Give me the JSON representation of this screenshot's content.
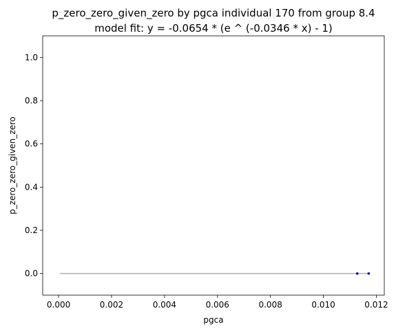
{
  "chart_data": {
    "type": "scatter",
    "title": "p_zero_zero_given_zero by pgca individual 170 from group 8.4",
    "subtitle": "model fit: y = -0.0654 * (e ^ (-0.0346 * x) - 1)",
    "xlabel": "pgca",
    "ylabel": "p_zero_zero_given_zero",
    "xlim": [
      -0.0006,
      0.0123
    ],
    "ylim": [
      -0.1,
      1.1
    ],
    "x_ticks": [
      "0.000",
      "0.002",
      "0.004",
      "0.006",
      "0.008",
      "0.010",
      "0.012"
    ],
    "y_ticks": [
      "0.0",
      "0.2",
      "0.4",
      "0.6",
      "0.8",
      "1.0"
    ],
    "grid": false,
    "points": [
      {
        "x": 0.01128,
        "y": 0.0
      },
      {
        "x": 0.01171,
        "y": 0.0
      }
    ],
    "fit_line": {
      "a": -0.0654,
      "b": -0.0346,
      "x_range": [
        5e-05,
        0.01171
      ]
    },
    "colors": {
      "points": "#0000cc",
      "fit_line": "#b0b0b0",
      "axes": "#000000"
    }
  }
}
